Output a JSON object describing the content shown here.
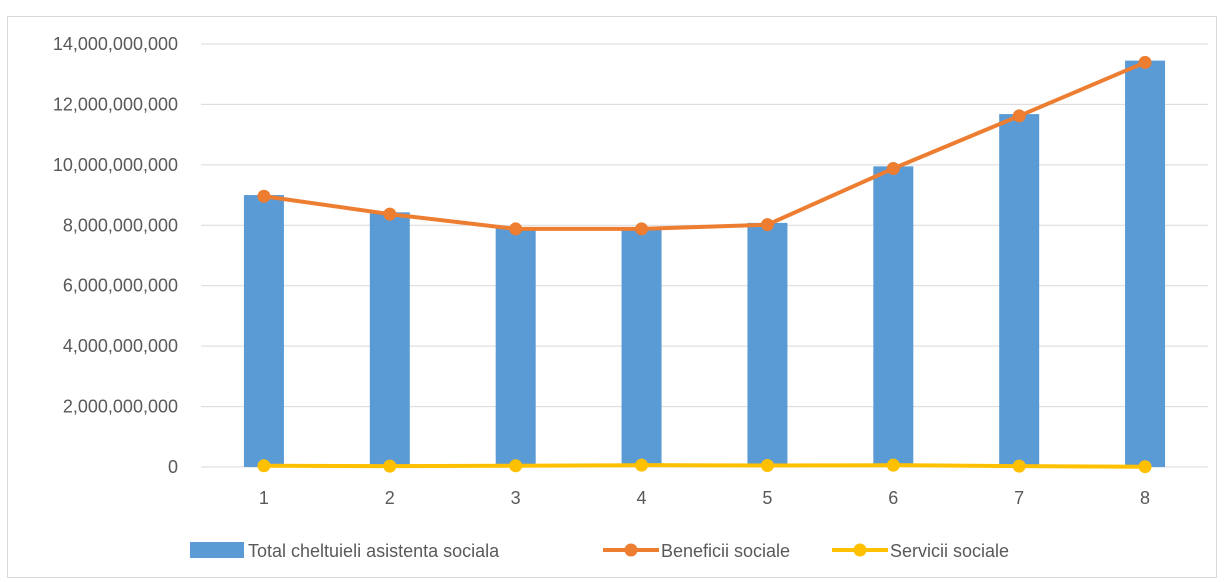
{
  "chart_data": {
    "type": "bar",
    "title": "",
    "xlabel": "",
    "ylabel": "",
    "categories": [
      "1",
      "2",
      "3",
      "4",
      "5",
      "6",
      "7",
      "8"
    ],
    "ylim": [
      0,
      14000000000
    ],
    "yticks": [
      0,
      2000000000,
      4000000000,
      6000000000,
      8000000000,
      10000000000,
      12000000000,
      14000000000
    ],
    "ytick_labels": [
      "0",
      "2,000,000,000",
      "4,000,000,000",
      "6,000,000,000",
      "8,000,000,000",
      "10,000,000,000",
      "12,000,000,000",
      "14,000,000,000"
    ],
    "grid": true,
    "legend_position": "bottom",
    "series": [
      {
        "name": "Total cheltuieli asistenta sociala",
        "type": "bar",
        "color": "#5b9bd5",
        "values": [
          9000000000,
          8430000000,
          7930000000,
          7940000000,
          8080000000,
          9950000000,
          11680000000,
          13450000000
        ]
      },
      {
        "name": "Beneficii sociale",
        "type": "line",
        "color": "#ed7d31",
        "values": [
          8960000000,
          8370000000,
          7880000000,
          7880000000,
          8020000000,
          9880000000,
          11620000000,
          13390000000
        ]
      },
      {
        "name": "Servicii sociale",
        "type": "line",
        "color": "#ffc000",
        "values": [
          40000000,
          30000000,
          40000000,
          60000000,
          50000000,
          60000000,
          30000000,
          10000000
        ]
      }
    ]
  }
}
